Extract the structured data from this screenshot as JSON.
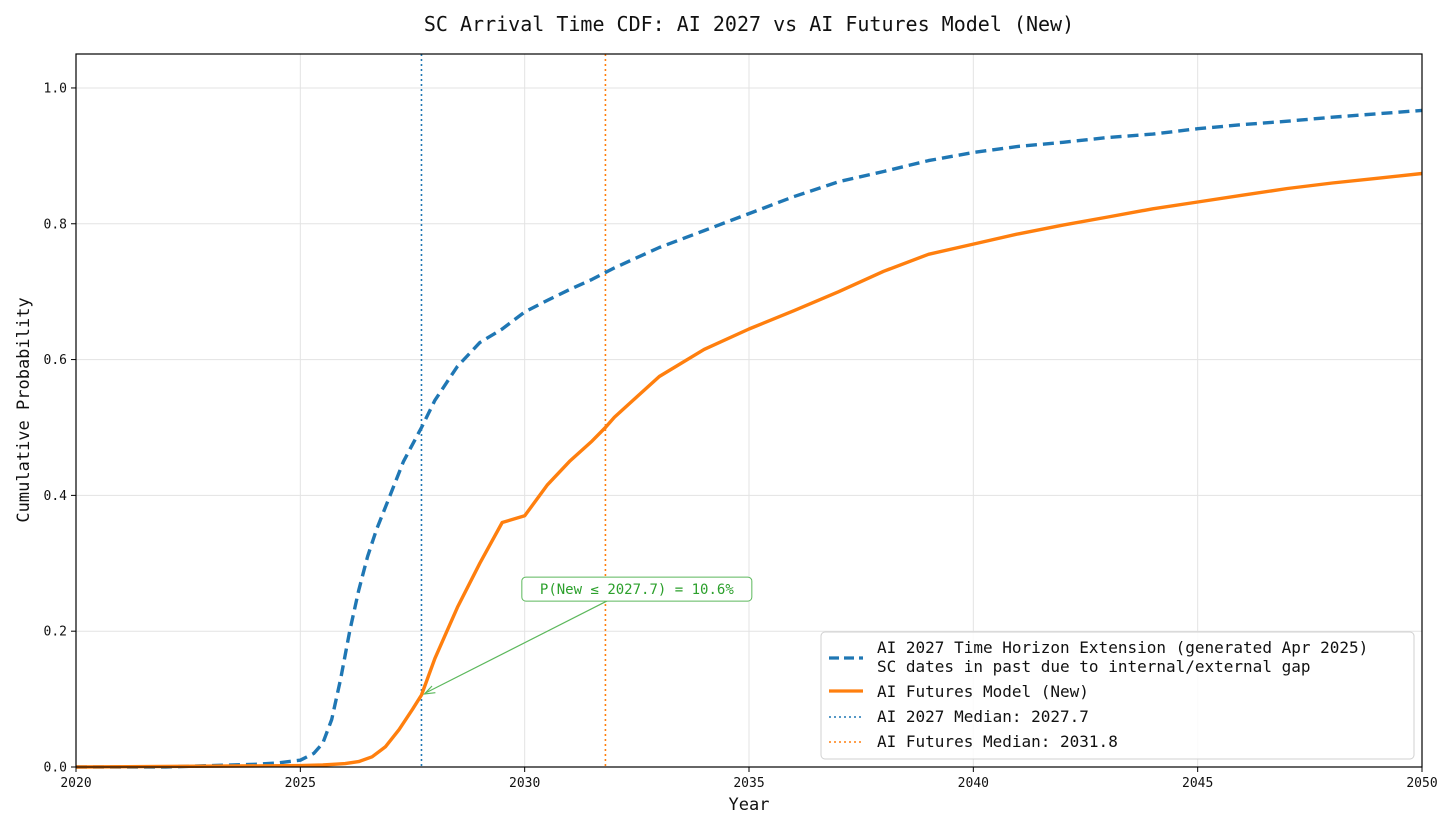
{
  "chart_data": {
    "type": "line",
    "title": "SC Arrival Time CDF: AI 2027 vs AI Futures Model (New)",
    "xlabel": "Year",
    "ylabel": "Cumulative Probability",
    "xlim": [
      2020,
      2050
    ],
    "ylim": [
      0,
      1.05
    ],
    "xticks": [
      2020,
      2025,
      2030,
      2035,
      2040,
      2045,
      2050
    ],
    "xtick_labels": [
      "2020",
      "2025",
      "2030",
      "2035",
      "2040",
      "2045",
      "2050"
    ],
    "yticks": [
      0,
      0.2,
      0.4,
      0.6,
      0.8,
      1.0
    ],
    "ytick_labels": [
      "0.0",
      "0.2",
      "0.4",
      "0.6",
      "0.8",
      "1.0"
    ],
    "grid": true,
    "legend_position": "lower-right",
    "series": [
      {
        "name": "AI 2027 Time Horizon Extension (generated Apr 2025)",
        "name_line2": "SC dates in past due to internal/external gap",
        "color": "#1f77b4",
        "style": "dashed",
        "x": [
          2020,
          2022,
          2023,
          2024,
          2024.5,
          2025,
          2025.3,
          2025.5,
          2025.7,
          2025.9,
          2026.1,
          2026.3,
          2026.5,
          2026.7,
          2027,
          2027.3,
          2027.7,
          2028,
          2028.5,
          2029,
          2029.5,
          2030,
          2030.5,
          2031,
          2031.5,
          2032,
          2033,
          2034,
          2035,
          2036,
          2037,
          2038,
          2039,
          2040,
          2041,
          2042,
          2043,
          2044,
          2045,
          2046,
          2047,
          2048,
          2049,
          2050
        ],
        "y": [
          0,
          0,
          0.002,
          0.004,
          0.006,
          0.01,
          0.02,
          0.035,
          0.07,
          0.13,
          0.2,
          0.26,
          0.31,
          0.35,
          0.4,
          0.45,
          0.5,
          0.54,
          0.59,
          0.625,
          0.645,
          0.67,
          0.687,
          0.703,
          0.718,
          0.735,
          0.765,
          0.79,
          0.815,
          0.84,
          0.862,
          0.877,
          0.893,
          0.905,
          0.914,
          0.92,
          0.927,
          0.932,
          0.94,
          0.946,
          0.951,
          0.957,
          0.962,
          0.967
        ]
      },
      {
        "name": "AI Futures Model (New)",
        "color": "#ff7f0e",
        "style": "solid",
        "x": [
          2020,
          2025,
          2025.5,
          2026,
          2026.3,
          2026.6,
          2026.9,
          2027.2,
          2027.5,
          2027.7,
          2028,
          2028.5,
          2029,
          2029.5,
          2030,
          2030.5,
          2031,
          2031.5,
          2031.8,
          2032,
          2032.5,
          2033,
          2034,
          2035,
          2036,
          2037,
          2038,
          2039,
          2040,
          2041,
          2042,
          2043,
          2044,
          2045,
          2046,
          2047,
          2048,
          2049,
          2050
        ],
        "y": [
          0,
          0.002,
          0.003,
          0.005,
          0.008,
          0.015,
          0.03,
          0.055,
          0.085,
          0.106,
          0.16,
          0.235,
          0.3,
          0.36,
          0.37,
          0.415,
          0.45,
          0.48,
          0.5,
          0.515,
          0.545,
          0.575,
          0.615,
          0.645,
          0.672,
          0.7,
          0.73,
          0.755,
          0.77,
          0.785,
          0.798,
          0.81,
          0.822,
          0.832,
          0.842,
          0.852,
          0.86,
          0.867,
          0.874
        ]
      }
    ],
    "vlines": [
      {
        "name": "AI 2027 Median: 2027.7",
        "x": 2027.7,
        "color": "#1f77b4",
        "style": "dotted"
      },
      {
        "name": "AI Futures Median: 2031.8",
        "x": 2031.8,
        "color": "#ff7f0e",
        "style": "dotted"
      }
    ],
    "annotation": {
      "text": "P(New ≤ 2027.7) = 10.6%",
      "xy": [
        2027.7,
        0.106
      ],
      "text_xy": [
        2032.5,
        0.262
      ],
      "color": "#2ca02c"
    }
  }
}
